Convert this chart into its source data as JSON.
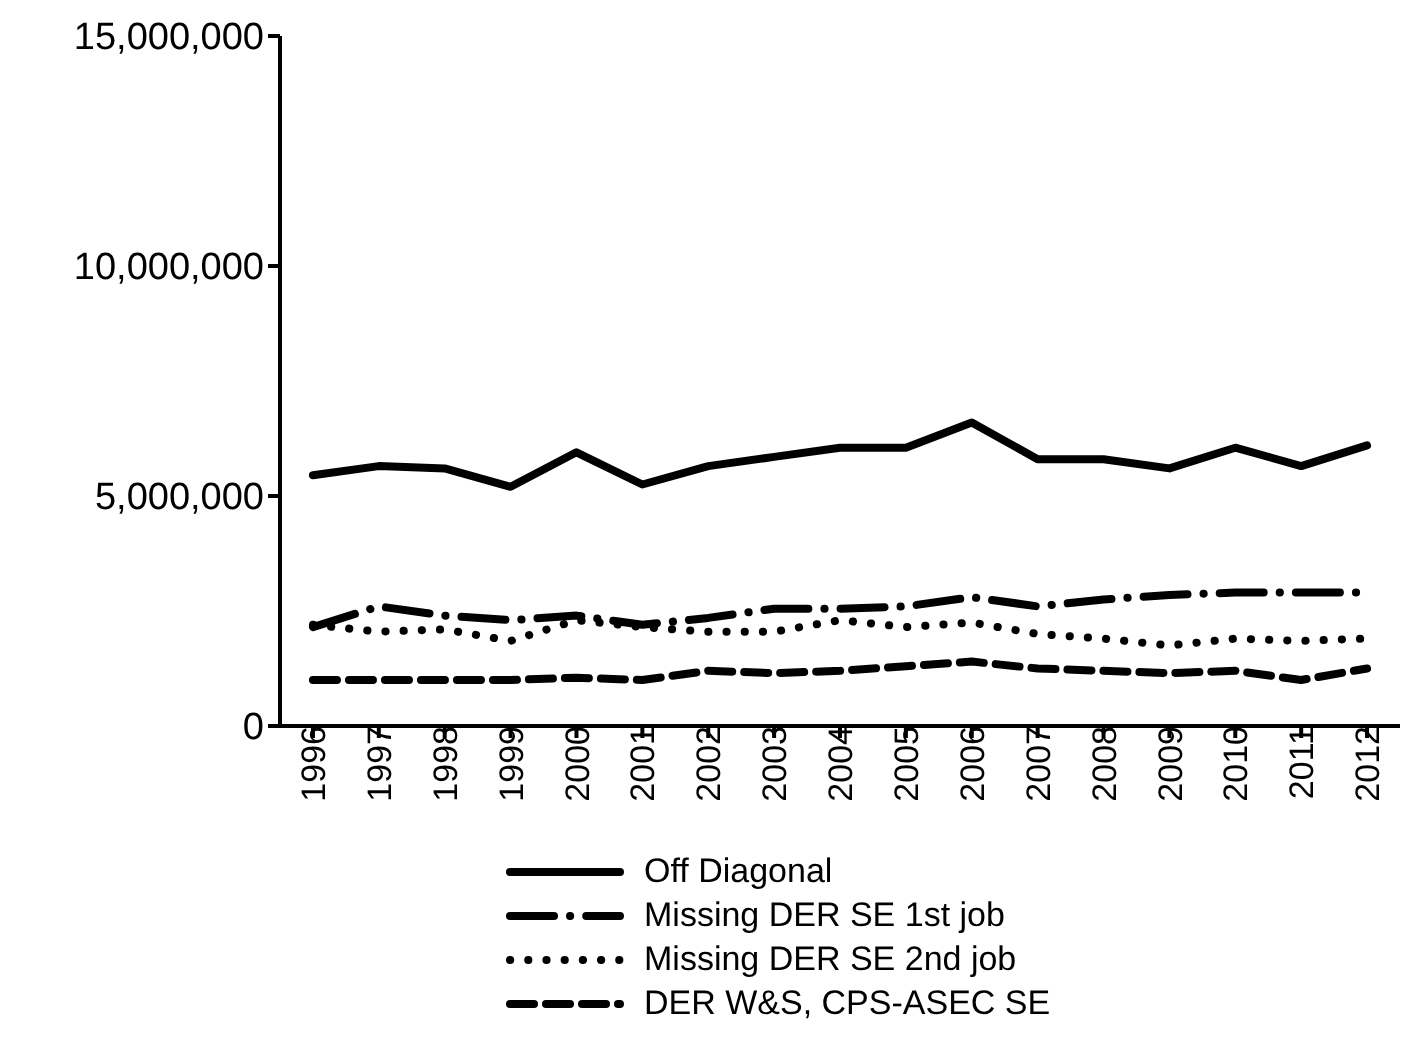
{
  "chart_data": {
    "type": "line",
    "categories": [
      "1996",
      "1997",
      "1998",
      "1999",
      "2000",
      "2001",
      "2002",
      "2003",
      "2004",
      "2005",
      "2006",
      "2007",
      "2008",
      "2009",
      "2010",
      "2011",
      "2012"
    ],
    "series": [
      {
        "name": "Off Diagonal",
        "color": "#000000",
        "line_style": "solid",
        "values": [
          5450000,
          5650000,
          5600000,
          5200000,
          5950000,
          5250000,
          5650000,
          5850000,
          6050000,
          6050000,
          6600000,
          5800000,
          5800000,
          5600000,
          6050000,
          5650000,
          6100000
        ]
      },
      {
        "name": "Missing DER SE 1st job",
        "color": "#000000",
        "line_style": "dashdot",
        "values": [
          2150000,
          2600000,
          2400000,
          2300000,
          2400000,
          2200000,
          2350000,
          2550000,
          2550000,
          2600000,
          2800000,
          2600000,
          2750000,
          2850000,
          2900000,
          2900000,
          2900000
        ]
      },
      {
        "name": "Missing DER SE 2nd job",
        "color": "#000000",
        "line_style": "dotted",
        "values": [
          2200000,
          2050000,
          2100000,
          1850000,
          2300000,
          2150000,
          2050000,
          2050000,
          2300000,
          2150000,
          2250000,
          2000000,
          1900000,
          1750000,
          1900000,
          1850000,
          1900000
        ]
      },
      {
        "name": "DER W&S, CPS-ASEC SE",
        "color": "#000000",
        "line_style": "dashed",
        "values": [
          1000000,
          1000000,
          1000000,
          1000000,
          1050000,
          1000000,
          1200000,
          1150000,
          1200000,
          1300000,
          1400000,
          1250000,
          1200000,
          1150000,
          1200000,
          1000000,
          1250000
        ]
      }
    ],
    "ylim": [
      0,
      15000000
    ],
    "yticks": [
      0,
      {
        "value": 5000000,
        "label": "5,000,000"
      },
      {
        "value": 10000000,
        "label": "10,000,000"
      },
      {
        "value": 15000000,
        "label": "15,000,000"
      }
    ],
    "grid": false,
    "legend": "bottom",
    "marker": "none"
  }
}
